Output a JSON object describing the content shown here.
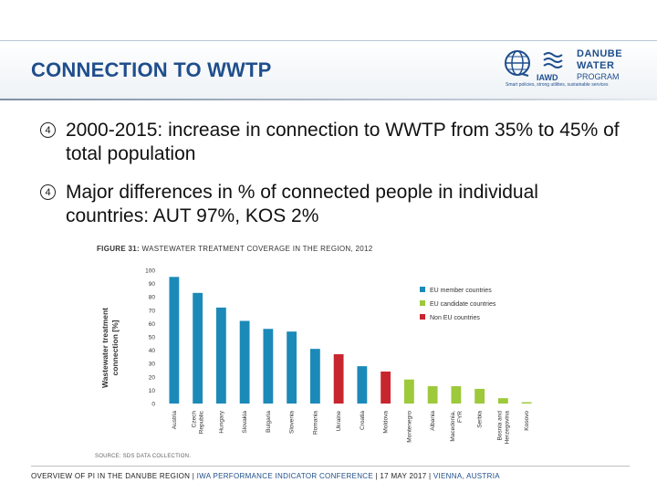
{
  "slide": {
    "title": "CONNECTION TO WWTP"
  },
  "logo": {
    "mark": "globe-logo",
    "org": "IAWD",
    "line1": "DANUBE",
    "line2": "WATER",
    "line3": "PROGRAM",
    "tagline": "Smart policies, strong utilities, sustainable services"
  },
  "bullets": [
    {
      "marker": "4",
      "text": "2000-2015: increase in connection to WWTP from 35% to 45% of total population"
    },
    {
      "marker": "4",
      "text": "Major differences in % of connected people in individual countries: AUT 97%, KOS 2%"
    }
  ],
  "figure": {
    "label": "FIGURE 31:",
    "caption": "WASTEWATER TREATMENT COVERAGE IN THE REGION, 2012",
    "source": "SOURCE: SDS DATA COLLECTION."
  },
  "colors": {
    "eu_member": "#1c8ab8",
    "eu_candidate": "#9dc93b",
    "non_eu": "#c8262e",
    "title_blue": "#1f4e8c"
  },
  "chart_data": {
    "type": "bar",
    "ylabel": "Wastewater treatment connection [%]",
    "ylim": [
      0,
      100
    ],
    "yticks": [
      0,
      10,
      20,
      30,
      40,
      50,
      60,
      70,
      80,
      90,
      100
    ],
    "grid": false,
    "legend_position": "top-right",
    "series": [
      {
        "name": "EU member countries",
        "color_key": "eu_member"
      },
      {
        "name": "EU candidate countries",
        "color_key": "eu_candidate"
      },
      {
        "name": "Non EU countries",
        "color_key": "non_eu"
      }
    ],
    "categories": [
      "Austria",
      "Czech Republic",
      "Hungary",
      "Slovakia",
      "Bulgaria",
      "Slovenia",
      "Romania",
      "Ukraine",
      "Croatia",
      "Moldova",
      "Montenegro",
      "Albania",
      "Macedonia, FYR",
      "Serbia",
      "Bosnia and Herzegovina",
      "Kosovo"
    ],
    "category_lines": [
      [
        "Austria"
      ],
      [
        "Czech",
        "Republic"
      ],
      [
        "Hungary"
      ],
      [
        "Slovakia"
      ],
      [
        "Bulgaria"
      ],
      [
        "Slovenia"
      ],
      [
        "Romania"
      ],
      [
        "Ukraine"
      ],
      [
        "Croatia"
      ],
      [
        "Moldova"
      ],
      [
        "Montenegro"
      ],
      [
        "Albania"
      ],
      [
        "Macedonia,",
        "FYR"
      ],
      [
        "Serbia"
      ],
      [
        "Bosnia and",
        "Herzegovina"
      ],
      [
        "Kosovo"
      ]
    ],
    "values": [
      95,
      83,
      72,
      62,
      56,
      54,
      41,
      37,
      28,
      24,
      18,
      13,
      13,
      11,
      4,
      1
    ],
    "groups": [
      "eu_member",
      "eu_member",
      "eu_member",
      "eu_member",
      "eu_member",
      "eu_member",
      "eu_member",
      "non_eu",
      "eu_member",
      "non_eu",
      "eu_candidate",
      "eu_candidate",
      "eu_candidate",
      "eu_candidate",
      "eu_candidate",
      "eu_candidate"
    ]
  },
  "footer": {
    "part1": "OVERVIEW OF PI IN THE DANUBE REGION | ",
    "part2": "IWA PERFORMANCE INDICATOR CONFERENCE",
    "part3": " | 17 MAY 2017 | ",
    "part4": "VIENNA, AUSTRIA"
  }
}
